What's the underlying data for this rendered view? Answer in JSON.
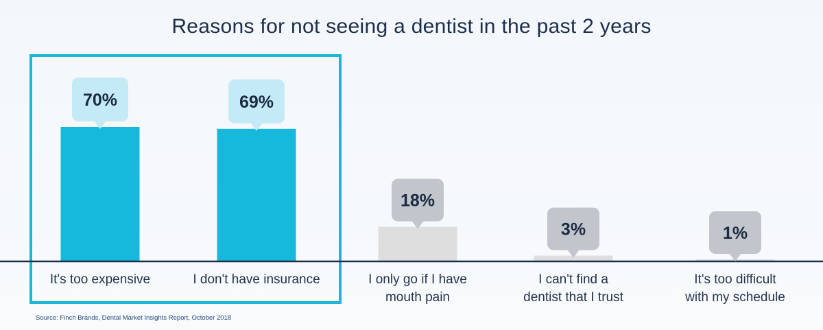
{
  "chart_data": {
    "type": "bar",
    "title": "Reasons for not seeing a dentist in the past 2 years",
    "categories": [
      [
        "It's too expensive"
      ],
      [
        "I don't have insurance"
      ],
      [
        "I only go if I have",
        "mouth pain"
      ],
      [
        "I can't find a",
        "dentist that I trust"
      ],
      [
        "It's too difficult",
        "with my schedule"
      ]
    ],
    "values": [
      70,
      69,
      18,
      3,
      1
    ],
    "value_labels": [
      "70%",
      "69%",
      "18%",
      "3%",
      "1%"
    ],
    "highlighted": [
      0,
      1
    ],
    "ylim": [
      0,
      100
    ],
    "source": "Source: Finch Brands, Dental Market Insights Report, October 2018"
  },
  "colors": {
    "highlight_bar": "#16b8dc",
    "muted_bar": "#dedede",
    "highlight_bubble": "#c4eaf5",
    "muted_bubble": "#c2c6cc",
    "bubble_text": "#1b2a40",
    "axis": "#1c2e4a",
    "label_text": "#24324a",
    "highlight_frame": "#1cb6d8"
  }
}
